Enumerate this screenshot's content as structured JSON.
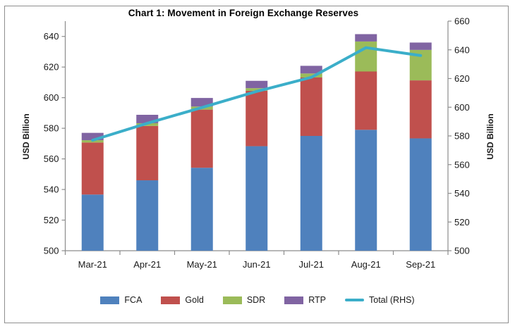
{
  "window": {
    "background": "#ffffff",
    "frame_border_color": "#8f8f8f",
    "text_color": "#1a1a1a",
    "axis_line_color": "#8c8c8c"
  },
  "chart_data": {
    "type": "bar",
    "subtype": "stacked-column-with-line-overlay",
    "title": "Chart 1: Movement in Foreign Exchange Reserves",
    "categories": [
      "Mar-21",
      "Apr-21",
      "May-21",
      "Jun-21",
      "Jul-21",
      "Aug-21",
      "Sep-21"
    ],
    "series": [
      {
        "name": "FCA",
        "type": "bar-stack",
        "axis": "left",
        "color": "#4F81BD",
        "values": [
          536.7,
          546.0,
          554.2,
          568.3,
          575.0,
          579.0,
          573.4
        ]
      },
      {
        "name": "Gold",
        "type": "bar-stack",
        "axis": "left",
        "color": "#C0504D",
        "values": [
          34.0,
          35.5,
          38.0,
          36.2,
          38.2,
          38.1,
          37.9
        ]
      },
      {
        "name": "SDR",
        "type": "bar-stack",
        "axis": "left",
        "color": "#9BBB59",
        "values": [
          1.5,
          1.8,
          2.0,
          1.7,
          2.6,
          19.6,
          19.9
        ]
      },
      {
        "name": "RTP",
        "type": "bar-stack",
        "axis": "left",
        "color": "#8064A2",
        "values": [
          4.8,
          5.5,
          5.6,
          4.8,
          5.0,
          4.8,
          4.8
        ]
      },
      {
        "name": "Total (RHS)",
        "type": "line",
        "axis": "right",
        "color": "#3BAEC9",
        "values": [
          577.0,
          588.8,
          599.8,
          611.0,
          620.8,
          641.5,
          636.0
        ]
      }
    ],
    "left_axis": {
      "label": "USD Billion",
      "min": 500,
      "max": 650,
      "tick_step": 20,
      "ticks": [
        500,
        520,
        540,
        560,
        580,
        600,
        620,
        640
      ]
    },
    "right_axis": {
      "label": "USD Billion",
      "min": 500,
      "max": 660,
      "tick_step": 20,
      "ticks": [
        500,
        520,
        540,
        560,
        580,
        600,
        620,
        640,
        660
      ]
    },
    "gridlines": false,
    "legend_position": "bottom"
  }
}
